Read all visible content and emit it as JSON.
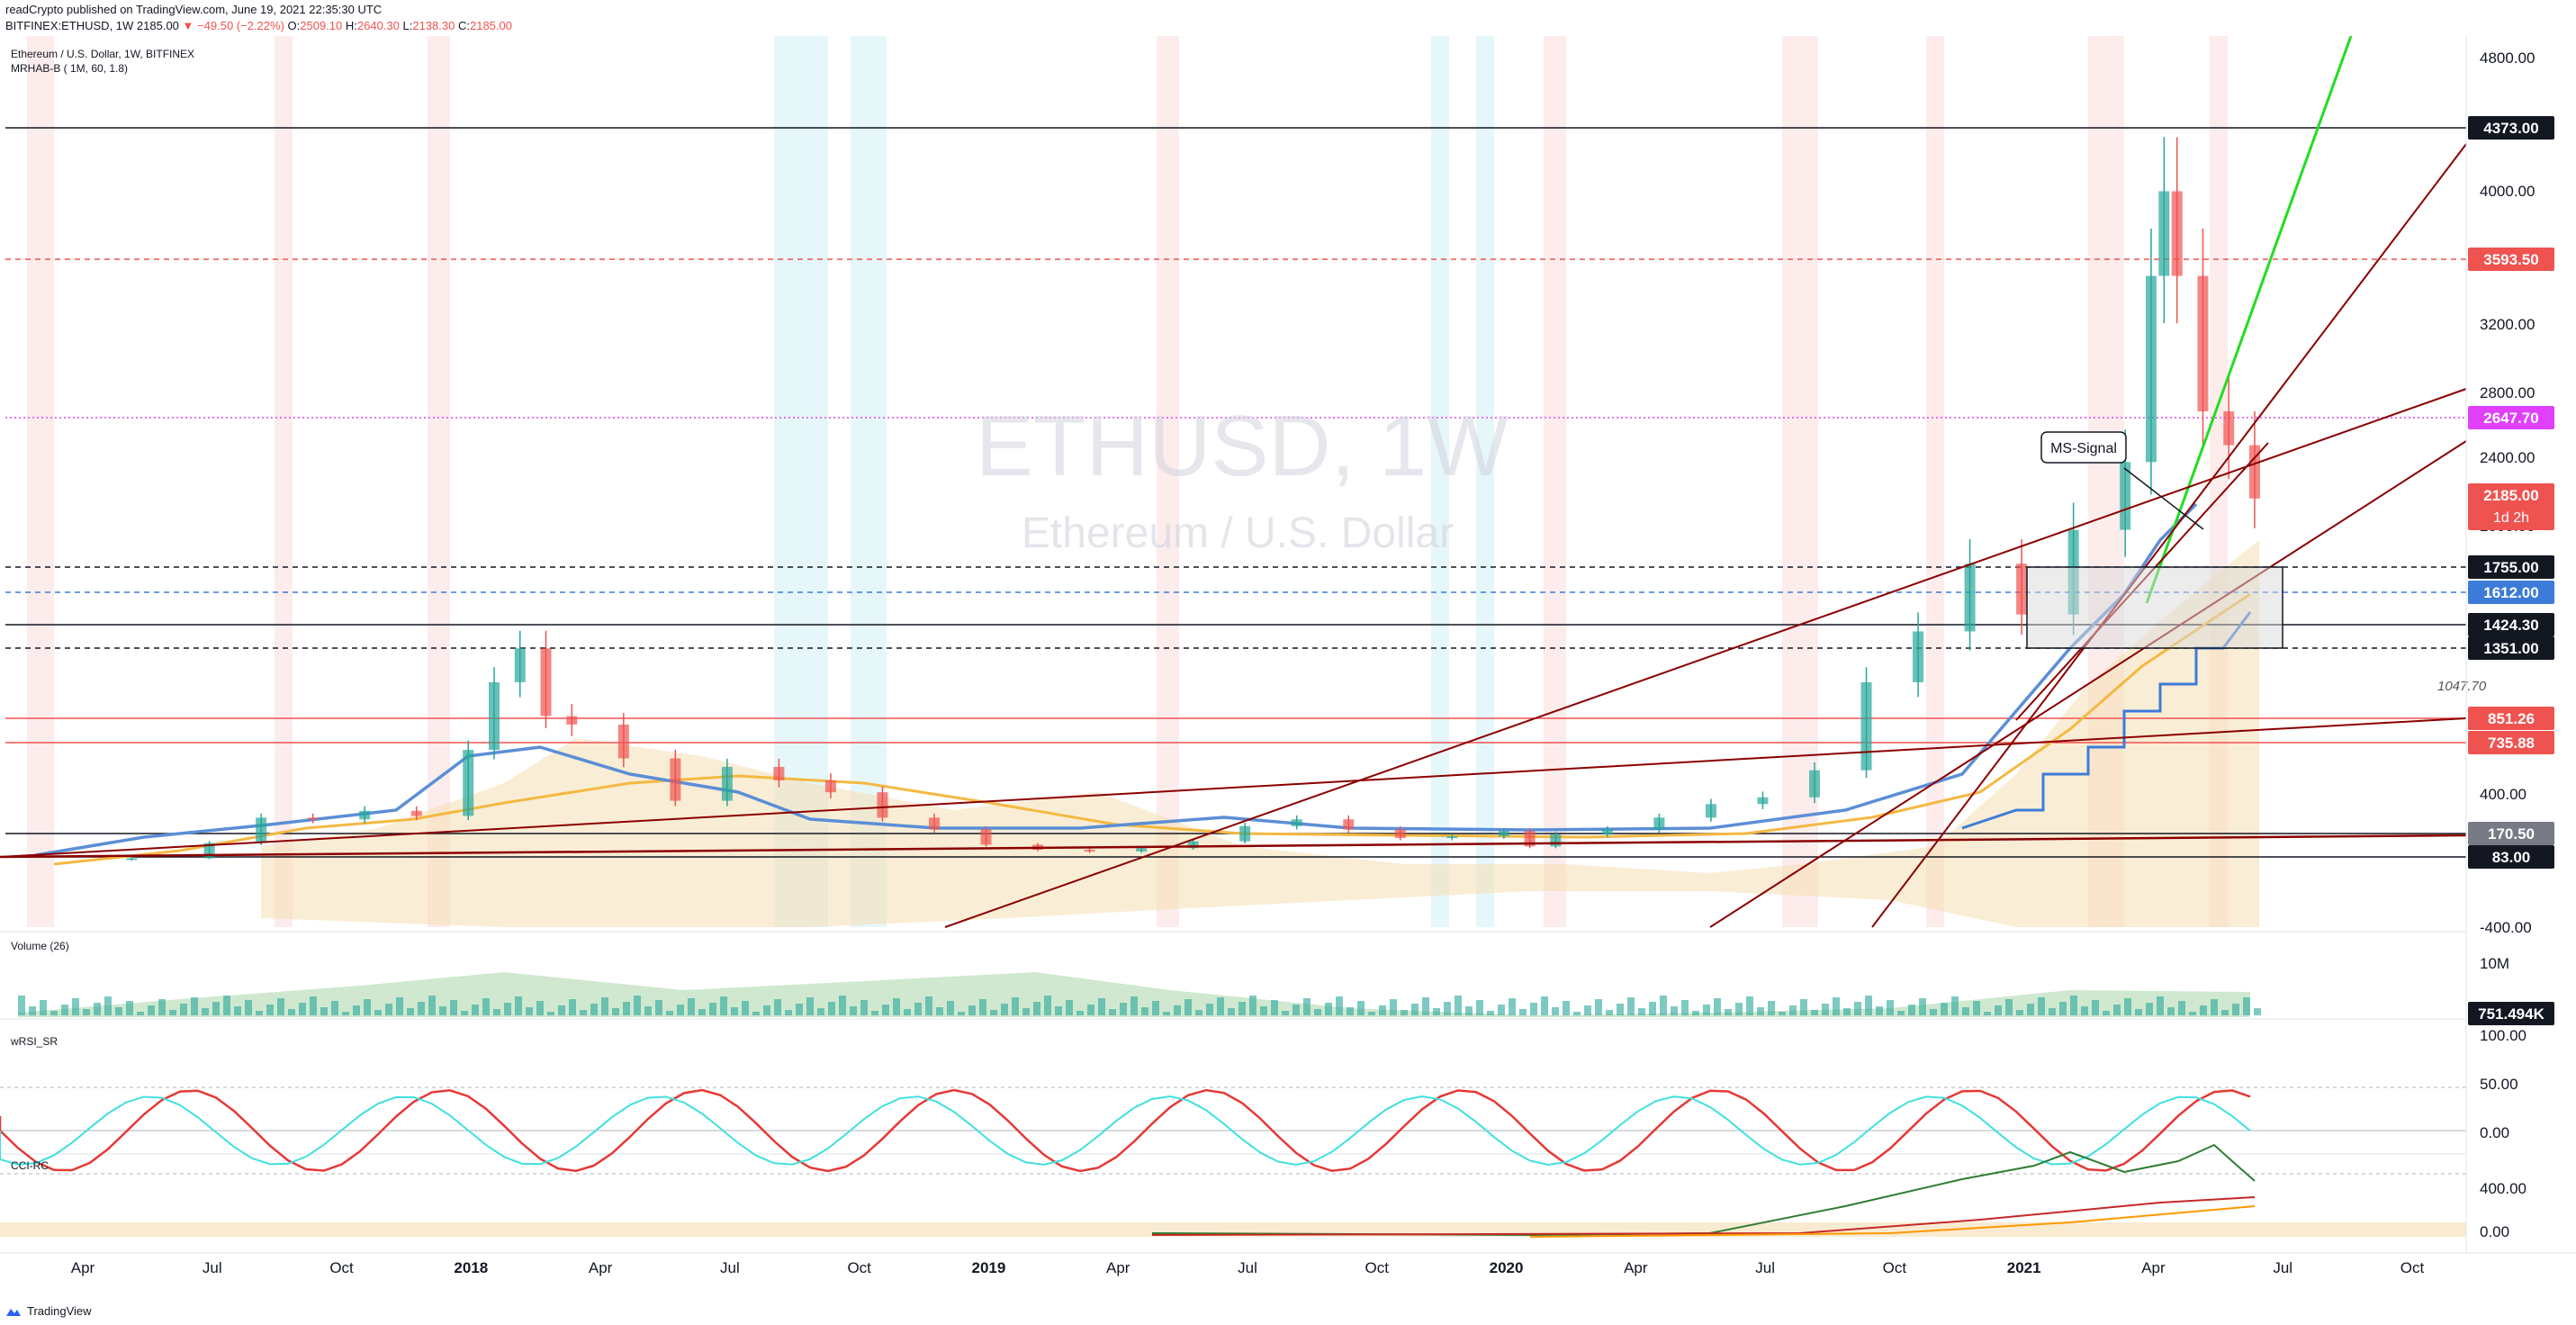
{
  "header": {
    "publisher": "readCrypto published on TradingView.com, June 19, 2021 22:35:30 UTC",
    "symbol_full": "BITFINEX:ETHUSD, 1W",
    "ohlc_price": "2185.00",
    "change": "−49.50 (−2.22%)",
    "o_label": "O:",
    "o_value": "2509.10",
    "h_label": "H:",
    "h_value": "2640.30",
    "l_label": "L:",
    "l_value": "2138.30",
    "c_label": "C:",
    "c_value": "2185.00"
  },
  "legend": {
    "symbol": "Ethereum / U.S. Dollar, 1W, BITFINEX",
    "indicator": "MRHAB-B ( 1M, 60, 1.8)"
  },
  "watermark": {
    "ticker": "ETHUSD, 1W",
    "name": "Ethereum / U.S. Dollar"
  },
  "annotations": {
    "ms_signal": "MS-Signal",
    "level_1047": "1047.70"
  },
  "panes": {
    "volume_label": "Volume (26)",
    "volume_tick": "10M",
    "volume_last": "751.494K",
    "rsi_label": "wRSI_SR",
    "cci_label": "CCI-RC"
  },
  "footer": {
    "brand": "TradingView"
  },
  "colors": {
    "bull": "#26a69a",
    "bear": "#ef5350",
    "green_line": "#22dd22",
    "trend_dark": "#8b0000",
    "magenta": "#e040fb",
    "blue_level": "#3d7bd9",
    "cloud": "#f5deb3",
    "ma_orange": "#f4b942",
    "ma_blue": "#5b8ed6"
  },
  "chart_data": {
    "type": "candlestick",
    "title": "Ethereum / U.S. Dollar, 1W, BITFINEX",
    "price_axis_ticks": [
      "4800.00",
      "4000.00",
      "3200.00",
      "2800.00",
      "2400.00",
      "2000.00",
      "400.00",
      "-400.00"
    ],
    "time_axis_labels": [
      "Apr",
      "Jul",
      "Oct",
      "2018",
      "Apr",
      "Jul",
      "Oct",
      "2019",
      "Apr",
      "Jul",
      "Oct",
      "2020",
      "Apr",
      "Jul",
      "Oct",
      "2021",
      "Apr",
      "Jul",
      "Oct"
    ],
    "rsi_axis_ticks": [
      "100.00",
      "50.00",
      "0.00"
    ],
    "cci_axis_ticks": [
      "400.00",
      "0.00"
    ],
    "price_levels": [
      {
        "label": "4373.00",
        "style": "solid",
        "color": "#131722",
        "badge": "#131722"
      },
      {
        "label": "3593.50",
        "style": "dashed",
        "color": "#ef5350",
        "badge": "#ef5350"
      },
      {
        "label": "2647.70",
        "style": "dotted",
        "color": "#e040fb",
        "badge": "#e040fb"
      },
      {
        "label": "2185.00",
        "style": "none",
        "color": "#ef5350",
        "badge": "#ef5350",
        "sub": "1d 2h"
      },
      {
        "label": "1755.00",
        "style": "dashed",
        "color": "#131722",
        "badge": "#131722"
      },
      {
        "label": "1612.00",
        "style": "dashed",
        "color": "#3d7bd9",
        "badge": "#3d7bd9"
      },
      {
        "label": "1424.30",
        "style": "solid",
        "color": "#131722",
        "badge": "#131722"
      },
      {
        "label": "1351.00",
        "style": "dashed",
        "color": "#131722",
        "badge": "#131722"
      },
      {
        "label": "851.26",
        "style": "solid",
        "color": "#ef5350",
        "badge": "#ef5350"
      },
      {
        "label": "735.88",
        "style": "solid",
        "color": "#ef5350",
        "badge": "#ef5350"
      },
      {
        "label": "170.50",
        "style": "solid",
        "color": "#131722",
        "badge": "#787b86"
      },
      {
        "label": "83.00",
        "style": "solid",
        "color": "#131722",
        "badge": "#131722"
      }
    ],
    "weekly_close_path": [
      [
        0,
        50
      ],
      [
        30,
        60
      ],
      [
        60,
        150
      ],
      [
        80,
        300
      ],
      [
        100,
        290
      ],
      [
        120,
        340
      ],
      [
        140,
        310
      ],
      [
        160,
        700
      ],
      [
        170,
        1100
      ],
      [
        180,
        1300
      ],
      [
        190,
        900
      ],
      [
        200,
        850
      ],
      [
        220,
        650
      ],
      [
        240,
        400
      ],
      [
        260,
        600
      ],
      [
        280,
        520
      ],
      [
        300,
        450
      ],
      [
        320,
        300
      ],
      [
        340,
        230
      ],
      [
        360,
        140
      ],
      [
        380,
        110
      ],
      [
        400,
        100
      ],
      [
        420,
        120
      ],
      [
        440,
        160
      ],
      [
        460,
        250
      ],
      [
        480,
        290
      ],
      [
        500,
        230
      ],
      [
        520,
        180
      ],
      [
        540,
        190
      ],
      [
        560,
        220
      ],
      [
        570,
        130
      ],
      [
        580,
        200
      ],
      [
        600,
        230
      ],
      [
        620,
        300
      ],
      [
        640,
        380
      ],
      [
        660,
        420
      ],
      [
        680,
        580
      ],
      [
        700,
        1100
      ],
      [
        720,
        1400
      ],
      [
        740,
        1800
      ],
      [
        760,
        1500
      ],
      [
        780,
        2000
      ],
      [
        800,
        2400
      ],
      [
        810,
        3500
      ],
      [
        815,
        4000
      ],
      [
        820,
        3500
      ],
      [
        830,
        2700
      ],
      [
        840,
        2500
      ],
      [
        850,
        2185
      ]
    ]
  }
}
